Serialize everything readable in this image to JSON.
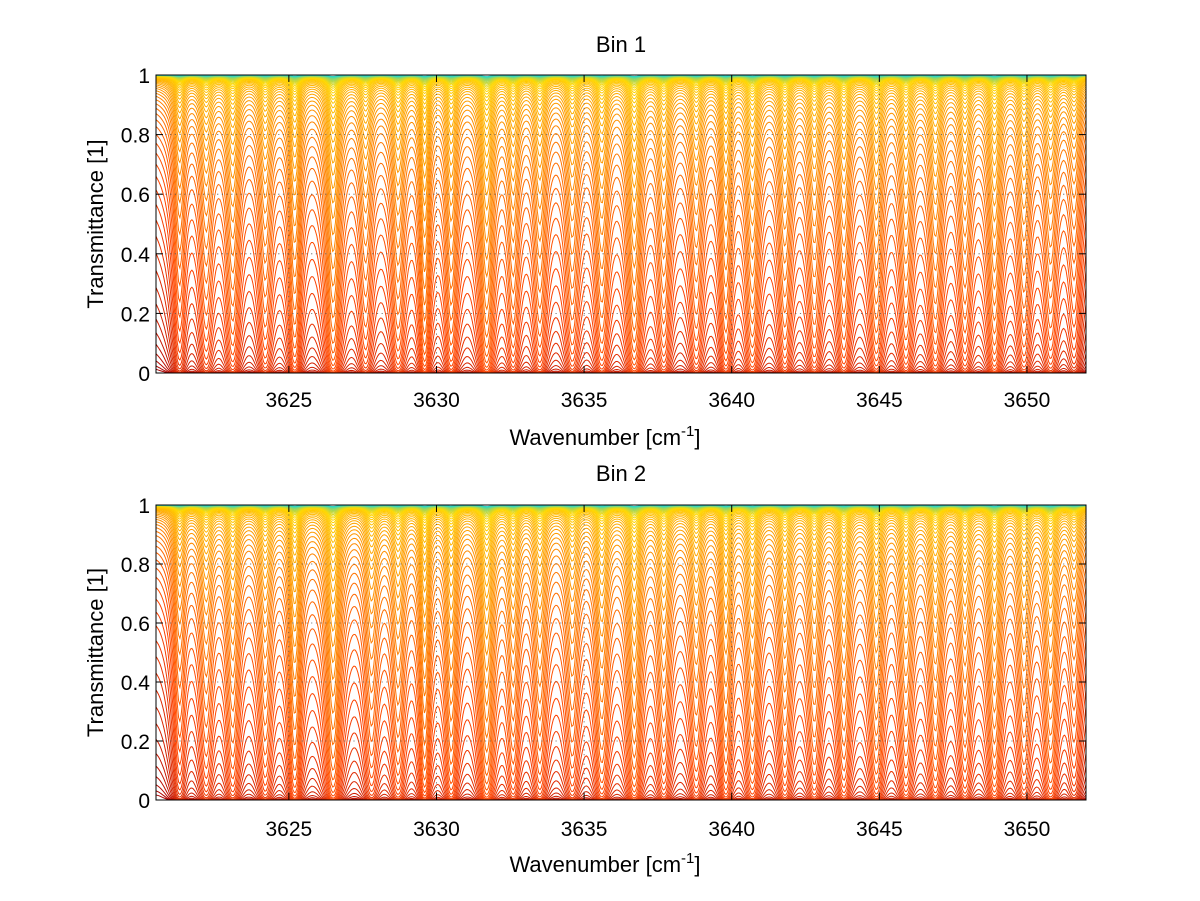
{
  "chart_data": [
    {
      "type": "line",
      "title": "Bin 1",
      "xlabel": "Wavenumber [cm",
      "xlabel_sup": "-1",
      "xlabel_suffix": "]",
      "ylabel": "Transmittance [1]",
      "xlim": [
        3620.5,
        3652
      ],
      "ylim": [
        0,
        1
      ],
      "xticks": [
        3625,
        3630,
        3635,
        3640,
        3645,
        3650
      ],
      "yticks": [
        0,
        0.2,
        0.4,
        0.6,
        0.8,
        1
      ],
      "grid": true,
      "series_count": 60,
      "series_color_range": [
        "#aa0000",
        "#ff4400",
        "#ff9900",
        "#ffd800",
        "#2bd6c7"
      ],
      "absorption_lines": [
        [
          3621.3,
          0.55,
          0.18
        ],
        [
          3622.2,
          0.6,
          0.2
        ],
        [
          3623.1,
          0.8,
          0.2
        ],
        [
          3624.2,
          0.7,
          0.2
        ],
        [
          3625.2,
          1.0,
          0.18
        ],
        [
          3626.5,
          1.3,
          0.2
        ],
        [
          3627.6,
          0.7,
          0.2
        ],
        [
          3628.7,
          0.85,
          0.2
        ],
        [
          3629.6,
          1.1,
          0.16
        ],
        [
          3630.5,
          0.9,
          0.18
        ],
        [
          3631.7,
          1.4,
          0.2
        ],
        [
          3632.6,
          0.75,
          0.18
        ],
        [
          3633.5,
          0.8,
          0.2
        ],
        [
          3634.6,
          0.75,
          0.2
        ],
        [
          3635.6,
          0.9,
          0.2
        ],
        [
          3636.7,
          1.25,
          0.2
        ],
        [
          3637.7,
          0.8,
          0.2
        ],
        [
          3638.8,
          0.7,
          0.2
        ],
        [
          3639.8,
          0.9,
          0.18
        ],
        [
          3640.7,
          0.95,
          0.2
        ],
        [
          3641.8,
          0.85,
          0.2
        ],
        [
          3642.8,
          0.8,
          0.2
        ],
        [
          3643.8,
          0.85,
          0.2
        ],
        [
          3644.9,
          0.9,
          0.2
        ],
        [
          3645.9,
          0.85,
          0.2
        ],
        [
          3646.9,
          0.9,
          0.2
        ],
        [
          3647.9,
          0.75,
          0.2
        ],
        [
          3648.9,
          1.1,
          0.2
        ],
        [
          3649.9,
          0.8,
          0.2
        ],
        [
          3650.8,
          0.7,
          0.2
        ],
        [
          3651.6,
          0.5,
          0.2
        ]
      ]
    },
    {
      "type": "line",
      "title": "Bin 2",
      "xlabel": "Wavenumber [cm",
      "xlabel_sup": "-1",
      "xlabel_suffix": "]",
      "ylabel": "Transmittance [1]",
      "xlim": [
        3620.5,
        3652
      ],
      "ylim": [
        0,
        1
      ],
      "xticks": [
        3625,
        3630,
        3635,
        3640,
        3645,
        3650
      ],
      "yticks": [
        0,
        0.2,
        0.4,
        0.6,
        0.8,
        1
      ],
      "grid": true,
      "series_count": 60,
      "series_color_range": [
        "#aa0000",
        "#ff4400",
        "#ff9900",
        "#ffd800",
        "#2bd6c7"
      ],
      "absorption_lines": [
        [
          3621.3,
          0.5,
          0.18
        ],
        [
          3622.2,
          0.6,
          0.2
        ],
        [
          3623.1,
          0.75,
          0.2
        ],
        [
          3624.2,
          0.7,
          0.2
        ],
        [
          3625.2,
          1.1,
          0.18
        ],
        [
          3626.5,
          1.3,
          0.2
        ],
        [
          3627.8,
          0.7,
          0.2
        ],
        [
          3628.7,
          0.8,
          0.2
        ],
        [
          3629.6,
          1.05,
          0.16
        ],
        [
          3630.5,
          0.95,
          0.18
        ],
        [
          3631.7,
          1.4,
          0.2
        ],
        [
          3632.6,
          0.75,
          0.18
        ],
        [
          3633.5,
          0.8,
          0.2
        ],
        [
          3634.6,
          0.7,
          0.2
        ],
        [
          3635.6,
          0.95,
          0.2
        ],
        [
          3636.7,
          1.25,
          0.2
        ],
        [
          3637.7,
          0.8,
          0.2
        ],
        [
          3638.8,
          0.75,
          0.2
        ],
        [
          3639.8,
          0.95,
          0.18
        ],
        [
          3640.7,
          0.95,
          0.2
        ],
        [
          3641.8,
          0.85,
          0.2
        ],
        [
          3642.8,
          0.8,
          0.2
        ],
        [
          3643.8,
          0.9,
          0.2
        ],
        [
          3644.9,
          0.95,
          0.2
        ],
        [
          3645.9,
          0.85,
          0.2
        ],
        [
          3646.9,
          0.9,
          0.2
        ],
        [
          3647.9,
          0.75,
          0.2
        ],
        [
          3648.9,
          1.05,
          0.2
        ],
        [
          3649.9,
          0.8,
          0.2
        ],
        [
          3650.8,
          0.95,
          0.2
        ],
        [
          3651.6,
          0.5,
          0.2
        ]
      ]
    }
  ]
}
